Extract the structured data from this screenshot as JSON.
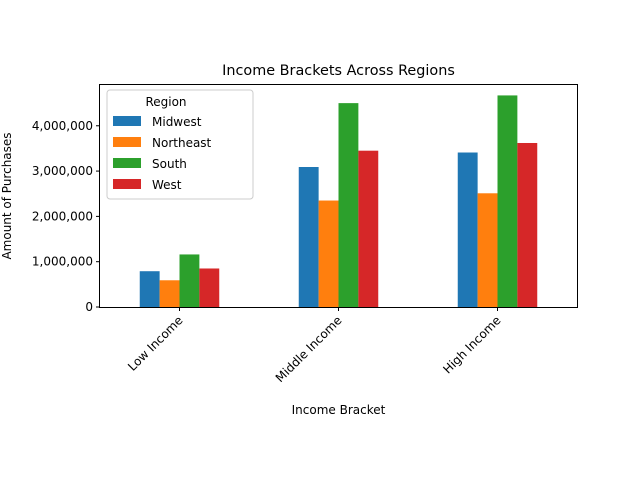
{
  "chart_data": {
    "type": "bar",
    "title": "Income Brackets Across Regions",
    "xlabel": "Income Bracket",
    "ylabel": "Amount of Purchases",
    "categories": [
      "Low Income",
      "Middle Income",
      "High Income"
    ],
    "series": [
      {
        "name": "Midwest",
        "color": "#1f77b4",
        "values": [
          790000,
          3090000,
          3410000
        ]
      },
      {
        "name": "Northeast",
        "color": "#ff7f0e",
        "values": [
          590000,
          2350000,
          2510000
        ]
      },
      {
        "name": "South",
        "color": "#2ca02c",
        "values": [
          1160000,
          4500000,
          4670000
        ]
      },
      {
        "name": "West",
        "color": "#d62728",
        "values": [
          850000,
          3450000,
          3620000
        ]
      }
    ],
    "ylim": [
      0,
      4900000
    ],
    "yticks": [
      0,
      1000000,
      2000000,
      3000000,
      4000000
    ],
    "ytick_labels": [
      "0",
      "1,000,000",
      "2,000,000",
      "3,000,000",
      "4,000,000"
    ],
    "xtick_rotation_deg": 45,
    "grid": false,
    "legend": {
      "title": "Region",
      "placement": "top-left"
    }
  }
}
